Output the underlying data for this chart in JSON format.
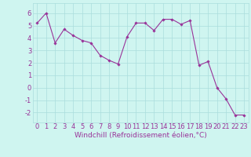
{
  "x": [
    0,
    1,
    2,
    3,
    4,
    5,
    6,
    7,
    8,
    9,
    10,
    11,
    12,
    13,
    14,
    15,
    16,
    17,
    18,
    19,
    20,
    21,
    22,
    23
  ],
  "y": [
    5.2,
    6.0,
    3.6,
    4.7,
    4.2,
    3.8,
    3.6,
    2.6,
    2.2,
    1.9,
    4.1,
    5.2,
    5.2,
    4.6,
    5.5,
    5.5,
    5.1,
    5.4,
    1.8,
    2.1,
    0.0,
    -0.9,
    -2.2,
    -2.2
  ],
  "line_color": "#993399",
  "marker_color": "#993399",
  "bg_color": "#cff5f0",
  "grid_color": "#aadddd",
  "xlabel": "Windchill (Refroidissement éolien,°C)",
  "xlabel_color": "#993399",
  "xlabel_fontsize": 6.5,
  "tick_color": "#993399",
  "tick_fontsize": 6.0,
  "ylim": [
    -2.8,
    6.8
  ],
  "yticks": [
    -2,
    -1,
    0,
    1,
    2,
    3,
    4,
    5,
    6
  ],
  "xticks": [
    0,
    1,
    2,
    3,
    4,
    5,
    6,
    7,
    8,
    9,
    10,
    11,
    12,
    13,
    14,
    15,
    16,
    17,
    18,
    19,
    20,
    21,
    22,
    23
  ],
  "marker_size": 1.8,
  "line_width": 0.8
}
